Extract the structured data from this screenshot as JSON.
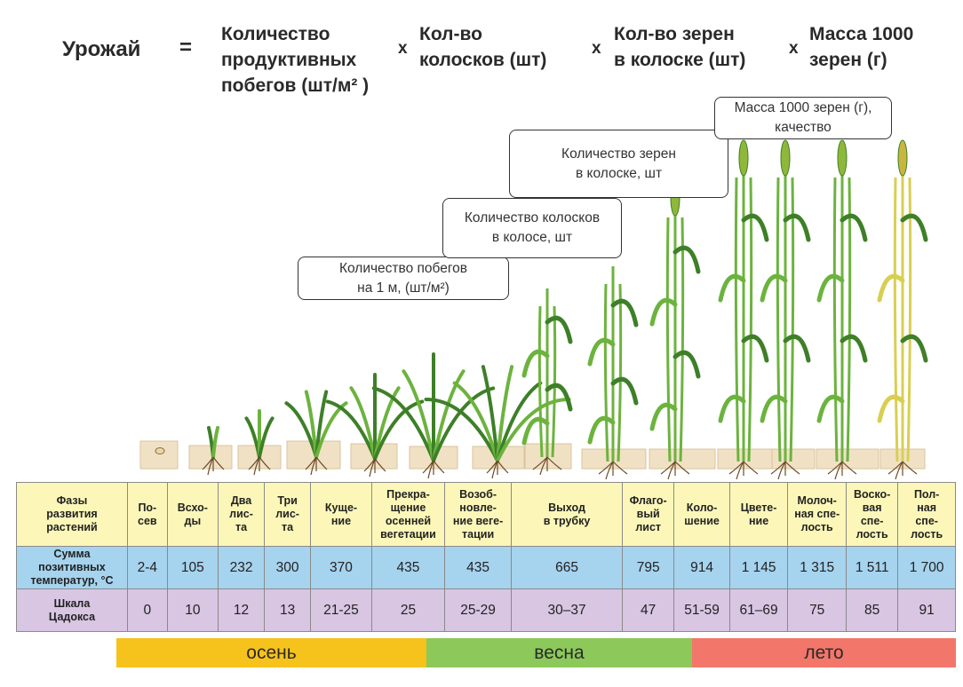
{
  "formula": {
    "result": "Урожай",
    "equals": "=",
    "times": "x",
    "factors": [
      "Количество\nпродуктивных\nпобегов (шт/м² )",
      "Кол-во\nколосков (шт)",
      "Кол-во зерен\nв колоске (шт)",
      "Масса 1000\nзерен (г)"
    ]
  },
  "callouts": [
    "Количество побегов\nна 1 м, (шт/м²)",
    "Количество колосков\nв колосе, шт",
    "Количество зерен\nв колоске, шт",
    "Масса 1000 зерен (г),\nкачество"
  ],
  "table": {
    "row_headers": {
      "phases": "Фазы\nразвития\nрастений",
      "temperature": "Сумма\nпозитивных\nтемператур, °С",
      "zadoks": "Шкала\nЦадокса"
    },
    "columns": [
      {
        "phase": "По-\nсев",
        "temp": "2-4",
        "zadoks": "0"
      },
      {
        "phase": "Всхо-\nды",
        "temp": "105",
        "zadoks": "10"
      },
      {
        "phase": "Два\nлис-\nта",
        "temp": "232",
        "zadoks": "12"
      },
      {
        "phase": "Три\nлис-\nта",
        "temp": "300",
        "zadoks": "13"
      },
      {
        "phase": "Куще-\nние",
        "temp": "370",
        "zadoks": "21-25"
      },
      {
        "phase": "Прекра-\nщение\nосенней\nвегетации",
        "temp": "435",
        "zadoks": "25"
      },
      {
        "phase": "Возоб-\nновле-\nние веге-\nтации",
        "temp": "435",
        "zadoks": "25-29"
      },
      {
        "phase": "Выход\nв трубку",
        "temp": "665",
        "zadoks": "30–37"
      },
      {
        "phase": "Флаго-\nвый\nлист",
        "temp": "795",
        "zadoks": "47"
      },
      {
        "phase": "Коло-\nшение",
        "temp": "914",
        "zadoks": "51-59"
      },
      {
        "phase": "Цвете-\nние",
        "temp": "1 145",
        "zadoks": "61–69"
      },
      {
        "phase": "Молоч-\nная спе-\nлость",
        "temp": "1 315",
        "zadoks": "75"
      },
      {
        "phase": "Воско-\nвая\nспе-\nлость",
        "temp": "1 511",
        "zadoks": "85"
      },
      {
        "phase": "Пол-\nная\nспе-\nлость",
        "temp": "1 700",
        "zadoks": "91"
      }
    ]
  },
  "seasons": [
    {
      "label": "осень",
      "color": "#f6c21c"
    },
    {
      "label": "весна",
      "color": "#8cc85a"
    },
    {
      "label": "лето",
      "color": "#f2766a"
    }
  ],
  "colors": {
    "plant_green": "#6cb33e",
    "plant_dark": "#3e7f28",
    "ripe_yellow": "#d8cf52",
    "soil": "#f1e1c4"
  }
}
